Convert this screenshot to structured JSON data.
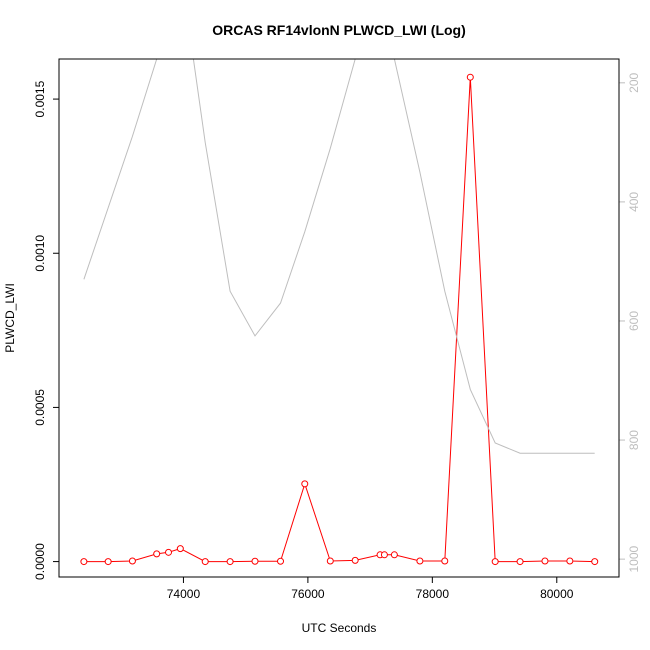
{
  "chart_data": {
    "type": "line",
    "title": "ORCAS RF14vlonN PLWCD_LWI (Log)",
    "xlabel": "UTC Seconds",
    "ylabel": "PLWCD_LWI",
    "xlim": [
      72000,
      81000
    ],
    "ylim": [
      -5e-05,
      0.00163
    ],
    "x_ticks": [
      74000,
      76000,
      78000,
      80000
    ],
    "x_tick_labels": [
      "74000",
      "76000",
      "78000",
      "80000"
    ],
    "y_ticks": [
      0.0,
      0.0005,
      0.001,
      0.0015
    ],
    "y_tick_labels": [
      "0.0000",
      "0.0005",
      "0.0010",
      "0.0015"
    ],
    "y2_label": "",
    "y2lim": [
      1030,
      160
    ],
    "y2_ticks": [
      200,
      400,
      600,
      800,
      1000
    ],
    "y2_tick_labels": [
      "200",
      "400",
      "600",
      "800",
      "1000"
    ],
    "series": [
      {
        "color": "#ff0000",
        "axis": "left",
        "marker": "open-circle",
        "x": [
          72400,
          72790,
          73180,
          73570,
          73760,
          73950,
          74350,
          74750,
          75150,
          75560,
          75950,
          76360,
          76760,
          77160,
          77230,
          77390,
          77800,
          78200,
          78610,
          79010,
          79410,
          79810,
          80210,
          80610
        ],
        "values": [
          0.0,
          0.0,
          2e-06,
          2.5e-05,
          3e-05,
          4.2e-05,
          0.0,
          0.0,
          1e-06,
          1e-06,
          0.000252,
          2e-06,
          4e-06,
          2.2e-05,
          2.2e-05,
          2.2e-05,
          2e-06,
          2e-06,
          0.001571,
          0.0,
          0.0,
          2e-06,
          2e-06,
          0.0
        ]
      },
      {
        "color": "#bebebe",
        "axis": "right",
        "marker": "none",
        "x": [
          72400,
          73180,
          73570,
          73760,
          74160,
          74350,
          74750,
          75150,
          75560,
          75950,
          76360,
          76760,
          77160,
          77390,
          77800,
          78200,
          78610,
          79010,
          79410,
          79810,
          80210,
          80610
        ],
        "values": [
          530,
          290,
          160,
          30,
          160,
          300,
          550,
          625,
          570,
          450,
          310,
          160,
          30,
          160,
          350,
          550,
          715,
          805,
          822,
          822,
          822,
          822
        ]
      }
    ],
    "grid": false,
    "legend": "none"
  }
}
